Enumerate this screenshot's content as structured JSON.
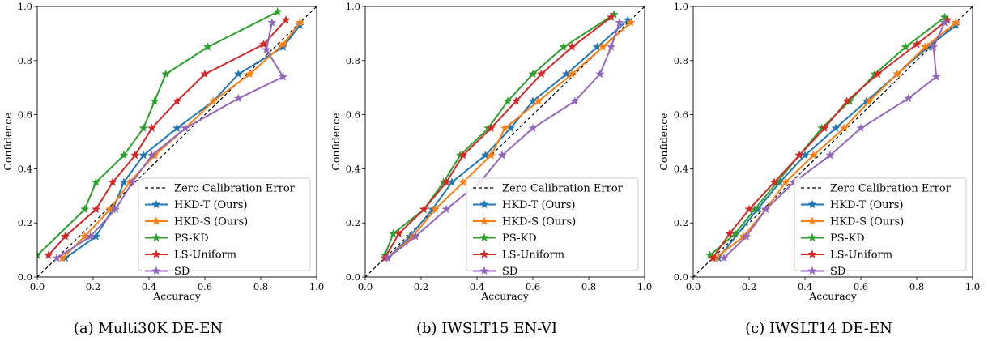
{
  "chart_data": [
    {
      "type": "line",
      "caption": "(a) Multi30K DE-EN",
      "xlabel": "Accuracy",
      "ylabel": "Confidence",
      "xlim": [
        0,
        1
      ],
      "ylim": [
        0,
        1
      ],
      "xticks": [
        "0.0",
        "0.2",
        "0.4",
        "0.6",
        "0.8",
        "1.0"
      ],
      "yticks": [
        "0.0",
        "0.2",
        "0.4",
        "0.6",
        "0.8",
        "1.0"
      ],
      "legend_position": "lower-right",
      "reference_line": "Zero Calibration Error",
      "series": [
        {
          "name": "HKD-T (Ours)",
          "points": [
            [
              0.1,
              0.07
            ],
            [
              0.21,
              0.15
            ],
            [
              0.27,
              0.25
            ],
            [
              0.31,
              0.35
            ],
            [
              0.38,
              0.45
            ],
            [
              0.5,
              0.55
            ],
            [
              0.63,
              0.65
            ],
            [
              0.72,
              0.75
            ],
            [
              0.88,
              0.85
            ],
            [
              0.94,
              0.93
            ]
          ]
        },
        {
          "name": "HKD-S (Ours)",
          "points": [
            [
              0.09,
              0.07
            ],
            [
              0.17,
              0.15
            ],
            [
              0.26,
              0.25
            ],
            [
              0.33,
              0.35
            ],
            [
              0.42,
              0.45
            ],
            [
              0.53,
              0.55
            ],
            [
              0.63,
              0.65
            ],
            [
              0.76,
              0.75
            ],
            [
              0.88,
              0.86
            ],
            [
              0.94,
              0.94
            ]
          ]
        },
        {
          "name": "PS-KD",
          "points": [
            [
              0.0,
              0.08
            ],
            [
              0.17,
              0.25
            ],
            [
              0.21,
              0.35
            ],
            [
              0.31,
              0.45
            ],
            [
              0.38,
              0.55
            ],
            [
              0.42,
              0.65
            ],
            [
              0.46,
              0.75
            ],
            [
              0.61,
              0.85
            ],
            [
              0.86,
              0.98
            ]
          ]
        },
        {
          "name": "LS-Uniform",
          "points": [
            [
              0.04,
              0.08
            ],
            [
              0.1,
              0.15
            ],
            [
              0.21,
              0.25
            ],
            [
              0.27,
              0.35
            ],
            [
              0.35,
              0.45
            ],
            [
              0.41,
              0.55
            ],
            [
              0.5,
              0.65
            ],
            [
              0.6,
              0.75
            ],
            [
              0.81,
              0.86
            ],
            [
              0.89,
              0.95
            ]
          ]
        },
        {
          "name": "SD",
          "points": [
            [
              0.07,
              0.07
            ],
            [
              0.19,
              0.15
            ],
            [
              0.28,
              0.25
            ],
            [
              0.34,
              0.35
            ],
            [
              0.41,
              0.45
            ],
            [
              0.53,
              0.55
            ],
            [
              0.72,
              0.66
            ],
            [
              0.88,
              0.74
            ],
            [
              0.82,
              0.84
            ],
            [
              0.84,
              0.94
            ]
          ]
        }
      ]
    },
    {
      "type": "line",
      "caption": "(b) IWSLT15 EN-VI",
      "xlabel": "Accuracy",
      "ylabel": "Confidence",
      "xlim": [
        0,
        1
      ],
      "ylim": [
        0,
        1
      ],
      "xticks": [
        "0.0",
        "0.2",
        "0.4",
        "0.6",
        "0.8",
        "1.0"
      ],
      "yticks": [
        "0.0",
        "0.2",
        "0.4",
        "0.6",
        "0.8",
        "1.0"
      ],
      "legend_position": "lower-right",
      "reference_line": "Zero Calibration Error",
      "series": [
        {
          "name": "HKD-T (Ours)",
          "points": [
            [
              0.08,
              0.07
            ],
            [
              0.16,
              0.15
            ],
            [
              0.24,
              0.25
            ],
            [
              0.31,
              0.35
            ],
            [
              0.43,
              0.45
            ],
            [
              0.52,
              0.55
            ],
            [
              0.6,
              0.65
            ],
            [
              0.72,
              0.75
            ],
            [
              0.83,
              0.85
            ],
            [
              0.94,
              0.95
            ]
          ]
        },
        {
          "name": "HKD-S (Ours)",
          "points": [
            [
              0.08,
              0.07
            ],
            [
              0.17,
              0.15
            ],
            [
              0.25,
              0.25
            ],
            [
              0.35,
              0.35
            ],
            [
              0.45,
              0.45
            ],
            [
              0.5,
              0.55
            ],
            [
              0.62,
              0.65
            ],
            [
              0.74,
              0.75
            ],
            [
              0.85,
              0.85
            ],
            [
              0.95,
              0.94
            ]
          ]
        },
        {
          "name": "PS-KD",
          "points": [
            [
              0.07,
              0.08
            ],
            [
              0.1,
              0.16
            ],
            [
              0.21,
              0.25
            ],
            [
              0.28,
              0.35
            ],
            [
              0.34,
              0.45
            ],
            [
              0.44,
              0.55
            ],
            [
              0.51,
              0.65
            ],
            [
              0.6,
              0.75
            ],
            [
              0.71,
              0.85
            ],
            [
              0.89,
              0.97
            ]
          ]
        },
        {
          "name": "LS-Uniform",
          "points": [
            [
              0.07,
              0.07
            ],
            [
              0.12,
              0.16
            ],
            [
              0.21,
              0.25
            ],
            [
              0.29,
              0.35
            ],
            [
              0.35,
              0.45
            ],
            [
              0.45,
              0.55
            ],
            [
              0.54,
              0.65
            ],
            [
              0.63,
              0.75
            ],
            [
              0.74,
              0.85
            ],
            [
              0.88,
              0.96
            ]
          ]
        },
        {
          "name": "SD",
          "points": [
            [
              0.08,
              0.07
            ],
            [
              0.18,
              0.15
            ],
            [
              0.29,
              0.25
            ],
            [
              0.41,
              0.35
            ],
            [
              0.49,
              0.45
            ],
            [
              0.6,
              0.55
            ],
            [
              0.75,
              0.65
            ],
            [
              0.84,
              0.75
            ],
            [
              0.88,
              0.85
            ],
            [
              0.91,
              0.94
            ]
          ]
        }
      ]
    },
    {
      "type": "line",
      "caption": "(c) IWSLT14 DE-EN",
      "xlabel": "Accuracy",
      "ylabel": "Confidence",
      "xlim": [
        0,
        1
      ],
      "ylim": [
        0,
        1
      ],
      "xticks": [
        "0.0",
        "0.2",
        "0.4",
        "0.6",
        "0.8",
        "1.0"
      ],
      "yticks": [
        "0.0",
        "0.2",
        "0.4",
        "0.6",
        "0.8",
        "1.0"
      ],
      "legend_position": "lower-right",
      "reference_line": "Zero Calibration Error",
      "series": [
        {
          "name": "HKD-T (Ours)",
          "points": [
            [
              0.09,
              0.07
            ],
            [
              0.23,
              0.25
            ],
            [
              0.31,
              0.35
            ],
            [
              0.4,
              0.45
            ],
            [
              0.51,
              0.55
            ],
            [
              0.62,
              0.65
            ],
            [
              0.73,
              0.75
            ],
            [
              0.84,
              0.85
            ],
            [
              0.94,
              0.93
            ]
          ]
        },
        {
          "name": "HKD-S (Ours)",
          "points": [
            [
              0.08,
              0.07
            ],
            [
              0.18,
              0.15
            ],
            [
              0.26,
              0.25
            ],
            [
              0.33,
              0.35
            ],
            [
              0.43,
              0.45
            ],
            [
              0.54,
              0.55
            ],
            [
              0.63,
              0.65
            ],
            [
              0.73,
              0.75
            ],
            [
              0.83,
              0.85
            ],
            [
              0.94,
              0.94
            ]
          ]
        },
        {
          "name": "PS-KD",
          "points": [
            [
              0.06,
              0.08
            ],
            [
              0.15,
              0.16
            ],
            [
              0.22,
              0.25
            ],
            [
              0.3,
              0.35
            ],
            [
              0.38,
              0.45
            ],
            [
              0.46,
              0.55
            ],
            [
              0.56,
              0.65
            ],
            [
              0.65,
              0.75
            ],
            [
              0.76,
              0.85
            ],
            [
              0.9,
              0.96
            ]
          ]
        },
        {
          "name": "LS-Uniform",
          "points": [
            [
              0.07,
              0.07
            ],
            [
              0.13,
              0.16
            ],
            [
              0.2,
              0.25
            ],
            [
              0.29,
              0.35
            ],
            [
              0.38,
              0.45
            ],
            [
              0.47,
              0.55
            ],
            [
              0.55,
              0.65
            ],
            [
              0.66,
              0.75
            ],
            [
              0.8,
              0.86
            ],
            [
              0.91,
              0.95
            ]
          ]
        },
        {
          "name": "SD",
          "points": [
            [
              0.11,
              0.07
            ],
            [
              0.19,
              0.15
            ],
            [
              0.26,
              0.25
            ],
            [
              0.36,
              0.35
            ],
            [
              0.49,
              0.45
            ],
            [
              0.6,
              0.55
            ],
            [
              0.77,
              0.66
            ],
            [
              0.87,
              0.74
            ],
            [
              0.86,
              0.85
            ],
            [
              0.9,
              0.94
            ]
          ]
        }
      ]
    }
  ],
  "legend": {
    "reference_label": "Zero Calibration Error",
    "series_labels": [
      "HKD-T (Ours)",
      "HKD-S (Ours)",
      "PS-KD",
      "LS-Uniform",
      "SD"
    ]
  },
  "colors": {
    "HKD-T (Ours)": "#1f77b4",
    "HKD-S (Ours)": "#ff7f0e",
    "PS-KD": "#2ca02c",
    "LS-Uniform": "#d62728",
    "SD": "#9467bd",
    "reference": "#000000"
  },
  "marker": "star"
}
